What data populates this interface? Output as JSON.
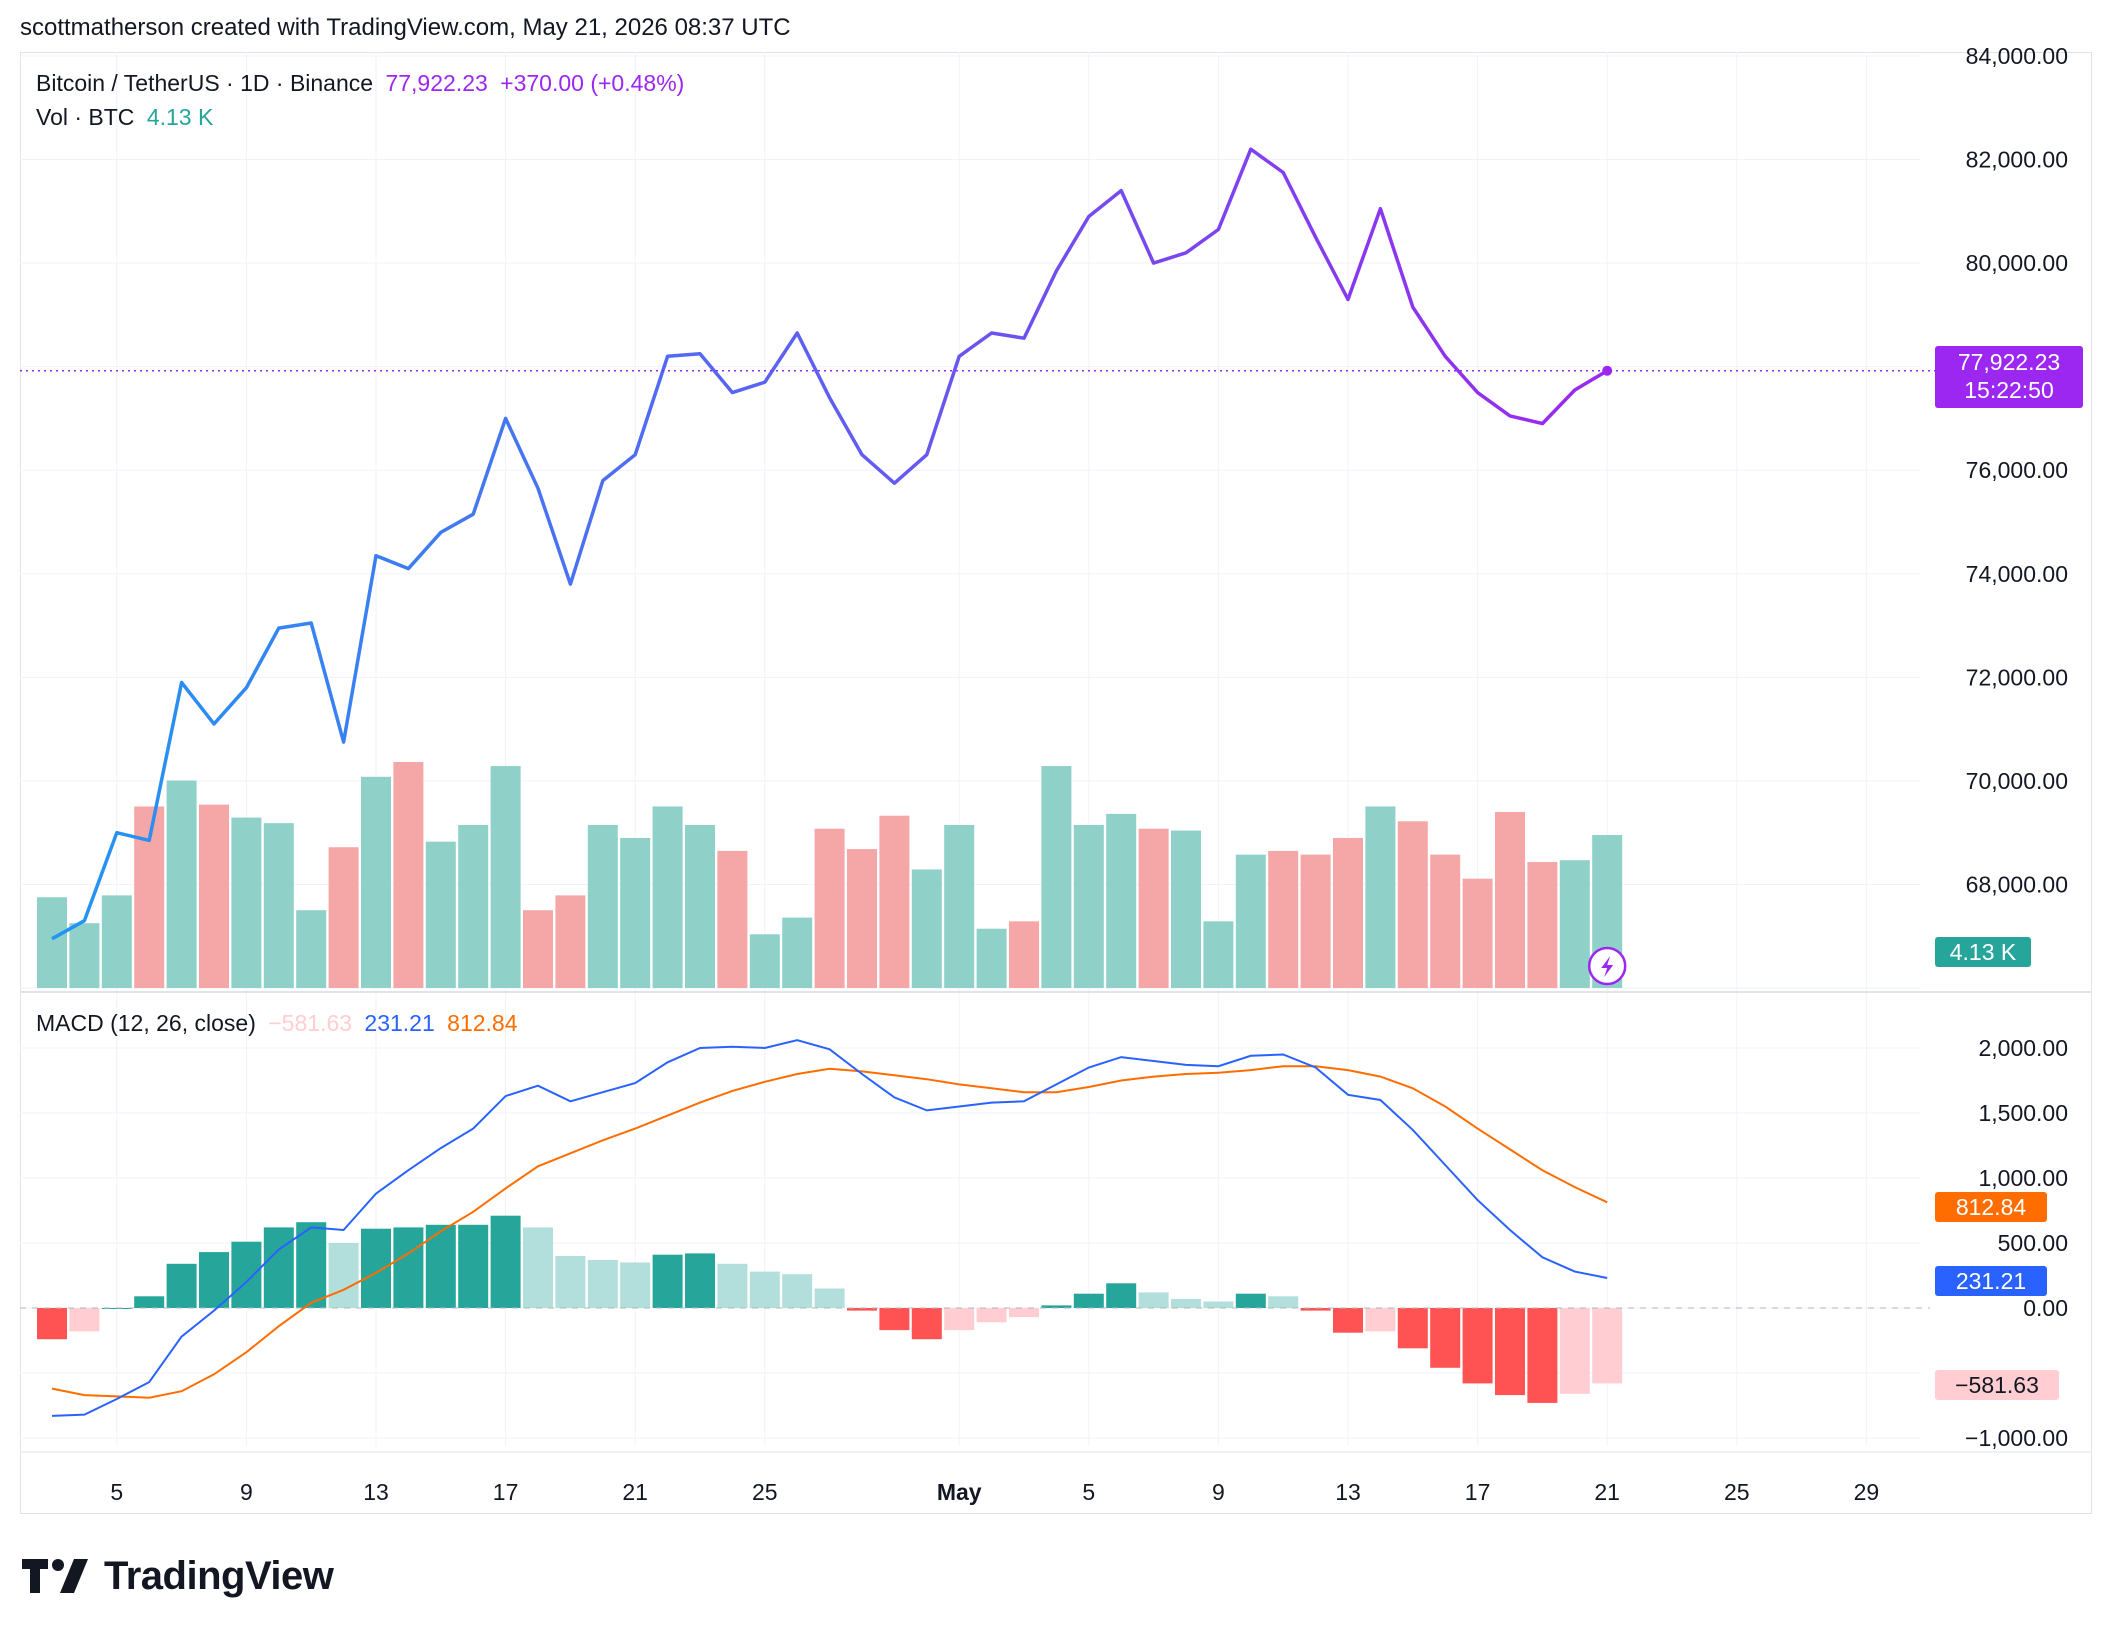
{
  "header": {
    "text": "scottmatherson created with TradingView.com, May 21, 2026 08:37 UTC"
  },
  "legend": {
    "symbol": "Bitcoin / TetherUS · 1D · Binance",
    "price": "77,922.23",
    "change": "+370.00 (+0.48%)",
    "vol_label": "Vol · BTC",
    "vol_value": "4.13 K",
    "macd_label": "MACD (12, 26, close)",
    "macd_hist": "−581.63",
    "macd_line": "231.21",
    "macd_signal": "812.84"
  },
  "tags": {
    "price": "77,922.23",
    "countdown": "15:22:50",
    "volume": "4.13 K",
    "signal": "812.84",
    "macd": "231.21",
    "hist": "−581.63"
  },
  "brand": {
    "name": "TradingView"
  },
  "colors": {
    "price_start": "#2196f3",
    "price_end": "#9c27f0",
    "up_bar": "#8fd1c9",
    "down_bar": "#f5a6a6",
    "macd_line": "#2962ff",
    "signal_line": "#ff6d00",
    "hist_up_strong": "#26a69a",
    "hist_up_weak": "#b2dfdb",
    "hist_down_strong": "#ff5252",
    "hist_down_weak": "#ffcdd2"
  },
  "chart_data": [
    {
      "type": "line",
      "name": "price",
      "x": [
        "Apr 3",
        "Apr 4",
        "Apr 5",
        "Apr 6",
        "Apr 7",
        "Apr 8",
        "Apr 9",
        "Apr 10",
        "Apr 11",
        "Apr 12",
        "Apr 13",
        "Apr 14",
        "Apr 15",
        "Apr 16",
        "Apr 17",
        "Apr 18",
        "Apr 19",
        "Apr 20",
        "Apr 21",
        "Apr 22",
        "Apr 23",
        "Apr 24",
        "Apr 25",
        "Apr 26",
        "Apr 27",
        "Apr 28",
        "Apr 29",
        "Apr 30",
        "May 1",
        "May 2",
        "May 3",
        "May 4",
        "May 5",
        "May 6",
        "May 7",
        "May 8",
        "May 9",
        "May 10",
        "May 11",
        "May 12",
        "May 13",
        "May 14",
        "May 15",
        "May 16",
        "May 17",
        "May 18",
        "May 19",
        "May 20",
        "May 21"
      ],
      "values": [
        66950,
        67300,
        69000,
        68850,
        71900,
        71100,
        71800,
        72950,
        73050,
        70750,
        74350,
        74100,
        74800,
        75150,
        77000,
        75650,
        73800,
        75800,
        76300,
        78200,
        78250,
        77500,
        77700,
        78650,
        77400,
        76300,
        75750,
        76300,
        78200,
        78650,
        78550,
        79850,
        80900,
        81400,
        80000,
        80200,
        80650,
        82200,
        81750,
        80500,
        79300,
        81050,
        79150,
        78200,
        77500,
        77050,
        76900,
        77550,
        77922
      ],
      "volumes": [
        2.45,
        1.75,
        2.5,
        4.9,
        5.6,
        4.95,
        4.6,
        4.45,
        2.1,
        3.8,
        5.7,
        6.1,
        3.95,
        4.4,
        5.99,
        2.1,
        2.5,
        4.4,
        4.05,
        4.9,
        4.4,
        3.7,
        1.45,
        1.9,
        4.3,
        3.75,
        4.65,
        3.2,
        4.4,
        1.6,
        1.8,
        5.99,
        4.4,
        4.7,
        4.3,
        4.25,
        1.8,
        3.6,
        3.7,
        3.6,
        4.05,
        4.9,
        4.5,
        3.6,
        2.95,
        4.75,
        3.4,
        3.45,
        4.13
      ],
      "volume_direction": [
        "up",
        "up",
        "up",
        "down",
        "up",
        "down",
        "up",
        "up",
        "up",
        "down",
        "up",
        "down",
        "up",
        "up",
        "up",
        "down",
        "down",
        "up",
        "up",
        "up",
        "up",
        "down",
        "up",
        "up",
        "down",
        "down",
        "down",
        "up",
        "up",
        "up",
        "down",
        "up",
        "up",
        "up",
        "down",
        "up",
        "up",
        "up",
        "down",
        "down",
        "down",
        "up",
        "down",
        "down",
        "down",
        "down",
        "down",
        "up",
        "up"
      ],
      "ylim": [
        66000,
        84000
      ],
      "yticks": [
        "84,000.00",
        "82,000.00",
        "80,000.00",
        "76,000.00",
        "74,000.00",
        "72,000.00",
        "70,000.00",
        "68,000.00"
      ],
      "last": "77,922.23"
    },
    {
      "type": "bar",
      "name": "MACD (12, 26, close)",
      "histogram": [
        -240,
        -180,
        0,
        90,
        340,
        430,
        510,
        620,
        660,
        500,
        610,
        620,
        640,
        640,
        710,
        620,
        400,
        370,
        350,
        410,
        420,
        340,
        280,
        260,
        150,
        -20,
        -170,
        -240,
        -170,
        -110,
        -70,
        20,
        110,
        190,
        120,
        70,
        50,
        110,
        90,
        -20,
        -190,
        -180,
        -310,
        -460,
        -580,
        -670,
        -730,
        -660,
        -580
      ],
      "macd": [
        -830,
        -820,
        -700,
        -570,
        -220,
        -20,
        200,
        450,
        620,
        600,
        880,
        1060,
        1230,
        1380,
        1630,
        1710,
        1590,
        1660,
        1730,
        1890,
        2000,
        2010,
        2000,
        2060,
        1990,
        1800,
        1620,
        1520,
        1550,
        1580,
        1590,
        1720,
        1850,
        1930,
        1900,
        1870,
        1860,
        1940,
        1950,
        1850,
        1640,
        1600,
        1370,
        1100,
        830,
        600,
        390,
        280,
        231
      ],
      "signal": [
        -620,
        -670,
        -680,
        -690,
        -640,
        -510,
        -340,
        -140,
        40,
        140,
        270,
        420,
        590,
        740,
        920,
        1090,
        1190,
        1290,
        1380,
        1480,
        1580,
        1670,
        1740,
        1800,
        1840,
        1820,
        1790,
        1760,
        1720,
        1690,
        1660,
        1660,
        1700,
        1750,
        1780,
        1800,
        1810,
        1830,
        1860,
        1860,
        1830,
        1780,
        1690,
        1550,
        1380,
        1220,
        1060,
        930,
        813
      ],
      "ylim": [
        -1000,
        2000
      ],
      "yticks": [
        "2,000.00",
        "1,500.00",
        "1,000.00",
        "500.00",
        "0.00",
        "−1,000.00"
      ]
    }
  ],
  "x_labels": [
    {
      "label": "5",
      "index": 2
    },
    {
      "label": "9",
      "index": 6
    },
    {
      "label": "13",
      "index": 10
    },
    {
      "label": "17",
      "index": 14
    },
    {
      "label": "21",
      "index": 18
    },
    {
      "label": "25",
      "index": 22
    },
    {
      "label": "May",
      "index": 28
    },
    {
      "label": "5",
      "index": 32
    },
    {
      "label": "9",
      "index": 36
    },
    {
      "label": "13",
      "index": 40
    },
    {
      "label": "17",
      "index": 44
    },
    {
      "label": "21",
      "index": 48
    },
    {
      "label": "25",
      "index": 52
    },
    {
      "label": "29",
      "index": 56
    }
  ]
}
